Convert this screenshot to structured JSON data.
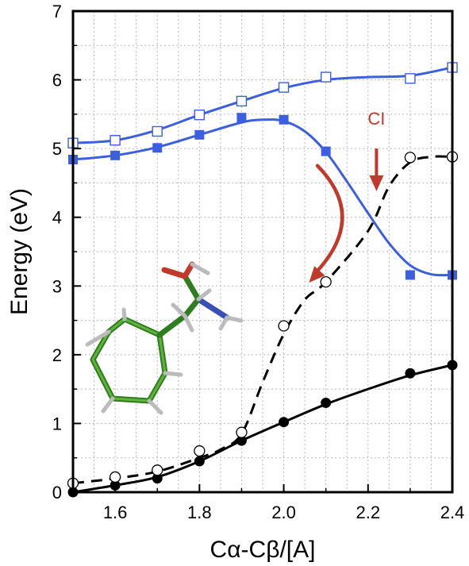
{
  "chart_data": {
    "type": "line",
    "xlabel": "Cα-Cβ/[A]",
    "ylabel": "Energy (eV)",
    "xlim": [
      1.5,
      2.4
    ],
    "ylim": [
      0,
      7
    ],
    "x_ticks": [
      "1.6",
      "1.8",
      "2.0",
      "2.2",
      "2.4"
    ],
    "x_tick_values": [
      1.6,
      1.8,
      2.0,
      2.2,
      2.4
    ],
    "y_ticks": [
      "0",
      "1",
      "2",
      "3",
      "4",
      "5",
      "6",
      "7"
    ],
    "y_tick_values": [
      0,
      1,
      2,
      3,
      4,
      5,
      6,
      7
    ],
    "grid": true,
    "legend": "none",
    "series": [
      {
        "marker": "filled-circle",
        "line": "solid",
        "color": "#000000",
        "points": [
          [
            1.5,
            0.0
          ],
          [
            1.6,
            0.1
          ],
          [
            1.7,
            0.2
          ],
          [
            1.8,
            0.45
          ],
          [
            1.9,
            0.75
          ],
          [
            2.0,
            1.02
          ],
          [
            2.1,
            1.3
          ],
          [
            2.3,
            1.73
          ],
          [
            2.4,
            1.85
          ]
        ],
        "curve": [
          [
            1.5,
            0.0
          ],
          [
            1.6,
            0.1
          ],
          [
            1.7,
            0.22
          ],
          [
            1.8,
            0.45
          ],
          [
            1.9,
            0.75
          ],
          [
            2.0,
            1.02
          ],
          [
            2.1,
            1.28
          ],
          [
            2.2,
            1.5
          ],
          [
            2.3,
            1.7
          ],
          [
            2.4,
            1.85
          ]
        ]
      },
      {
        "marker": "open-circle",
        "line": "dashed",
        "color": "#000000",
        "points": [
          [
            1.5,
            0.13
          ],
          [
            1.6,
            0.22
          ],
          [
            1.7,
            0.32
          ],
          [
            1.8,
            0.6
          ],
          [
            1.9,
            0.87
          ],
          [
            2.0,
            2.42
          ],
          [
            2.1,
            3.06
          ],
          [
            2.3,
            4.87
          ],
          [
            2.4,
            4.88
          ]
        ],
        "curve": [
          [
            1.5,
            0.13
          ],
          [
            1.6,
            0.2
          ],
          [
            1.7,
            0.3
          ],
          [
            1.8,
            0.5
          ],
          [
            1.85,
            0.62
          ],
          [
            1.9,
            0.85
          ],
          [
            1.95,
            1.6
          ],
          [
            2.0,
            2.3
          ],
          [
            2.05,
            2.8
          ],
          [
            2.1,
            3.06
          ],
          [
            2.2,
            3.8
          ],
          [
            2.25,
            4.45
          ],
          [
            2.3,
            4.8
          ],
          [
            2.35,
            4.88
          ],
          [
            2.4,
            4.88
          ]
        ]
      },
      {
        "marker": "filled-square",
        "line": "solid",
        "color": "#3b5fdf",
        "points": [
          [
            1.5,
            4.84
          ],
          [
            1.6,
            4.9
          ],
          [
            1.7,
            5.01
          ],
          [
            1.8,
            5.2
          ],
          [
            1.9,
            5.45
          ],
          [
            2.0,
            5.42
          ],
          [
            2.1,
            4.96
          ],
          [
            2.3,
            3.16
          ],
          [
            2.4,
            3.16
          ]
        ],
        "curve": [
          [
            1.5,
            4.84
          ],
          [
            1.6,
            4.9
          ],
          [
            1.7,
            5.02
          ],
          [
            1.8,
            5.2
          ],
          [
            1.9,
            5.38
          ],
          [
            1.95,
            5.42
          ],
          [
            2.0,
            5.4
          ],
          [
            2.05,
            5.25
          ],
          [
            2.1,
            4.95
          ],
          [
            2.15,
            4.52
          ],
          [
            2.2,
            4.06
          ],
          [
            2.25,
            3.62
          ],
          [
            2.3,
            3.3
          ],
          [
            2.35,
            3.17
          ],
          [
            2.4,
            3.16
          ]
        ]
      },
      {
        "marker": "open-square",
        "line": "solid",
        "color": "#3b5fdf",
        "points": [
          [
            1.5,
            5.08
          ],
          [
            1.6,
            5.12
          ],
          [
            1.7,
            5.25
          ],
          [
            1.8,
            5.49
          ],
          [
            1.9,
            5.69
          ],
          [
            2.0,
            5.89
          ],
          [
            2.1,
            6.04
          ],
          [
            2.3,
            6.02
          ],
          [
            2.4,
            6.18
          ]
        ],
        "curve": [
          [
            1.5,
            5.08
          ],
          [
            1.6,
            5.12
          ],
          [
            1.7,
            5.27
          ],
          [
            1.8,
            5.49
          ],
          [
            1.9,
            5.69
          ],
          [
            2.0,
            5.88
          ],
          [
            2.1,
            6.0
          ],
          [
            2.2,
            6.04
          ],
          [
            2.3,
            6.06
          ],
          [
            2.4,
            6.18
          ]
        ]
      }
    ],
    "annotations": [
      {
        "text": "CI",
        "x": 2.22,
        "y": 5.35,
        "color": "#c0392b"
      }
    ],
    "arrows": [
      {
        "color": "#c0392b",
        "kind": "straight",
        "from": [
          2.22,
          5.0
        ],
        "to": [
          2.22,
          4.38
        ]
      },
      {
        "color": "#c0392b",
        "kind": "curved",
        "from": [
          2.08,
          4.75
        ],
        "ctrl": [
          2.2,
          4.0
        ],
        "to": [
          2.06,
          3.05
        ]
      }
    ]
  }
}
